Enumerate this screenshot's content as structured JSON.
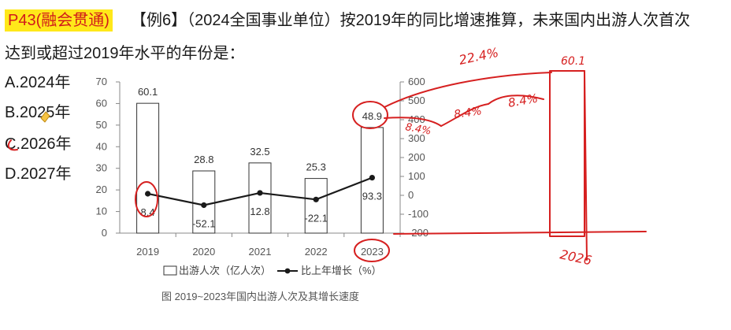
{
  "question": {
    "tag": "P43(融会贯通)",
    "line1": "【例6】（2024全国事业单位）按2019年的同比增速推算，未来国内出游人次首次",
    "line2": "达到或超过2019年水平的年份是：",
    "options": [
      "A.2024年",
      "B.2025年",
      "C.2026年",
      "D.2027年"
    ]
  },
  "chart_data": {
    "type": "bar",
    "categories": [
      "2019",
      "2020",
      "2021",
      "2022",
      "2023"
    ],
    "series": [
      {
        "name": "出游人次（亿人次）",
        "type": "bar",
        "axis": "left",
        "values": [
          60.1,
          28.8,
          32.5,
          25.3,
          48.9
        ]
      },
      {
        "name": "比上年增长（%）",
        "type": "line",
        "axis": "right",
        "values": [
          8.4,
          -52.1,
          12.8,
          -22.1,
          93.3
        ]
      }
    ],
    "left_axis": {
      "ylim": [
        0,
        70
      ],
      "ticks": [
        "0",
        "10",
        "20",
        "30",
        "40",
        "50",
        "60",
        "70"
      ]
    },
    "right_axis": {
      "ylim": [
        -200,
        600
      ],
      "ticks": [
        "-200",
        "-100",
        "0",
        "100",
        "200",
        "300",
        "400",
        "500",
        "600"
      ]
    },
    "caption": "图  2019~2023年国内出游人次及其增长速度",
    "colors": {
      "bar_fill": "#ffffff",
      "bar_stroke": "#333333",
      "line": "#1a1a1a",
      "annotation": "#d62020"
    }
  },
  "annotations": {
    "handwriting": [
      "22.4%",
      "8.4%",
      "8.4%",
      "8.4%",
      "60.1",
      "2026"
    ]
  }
}
